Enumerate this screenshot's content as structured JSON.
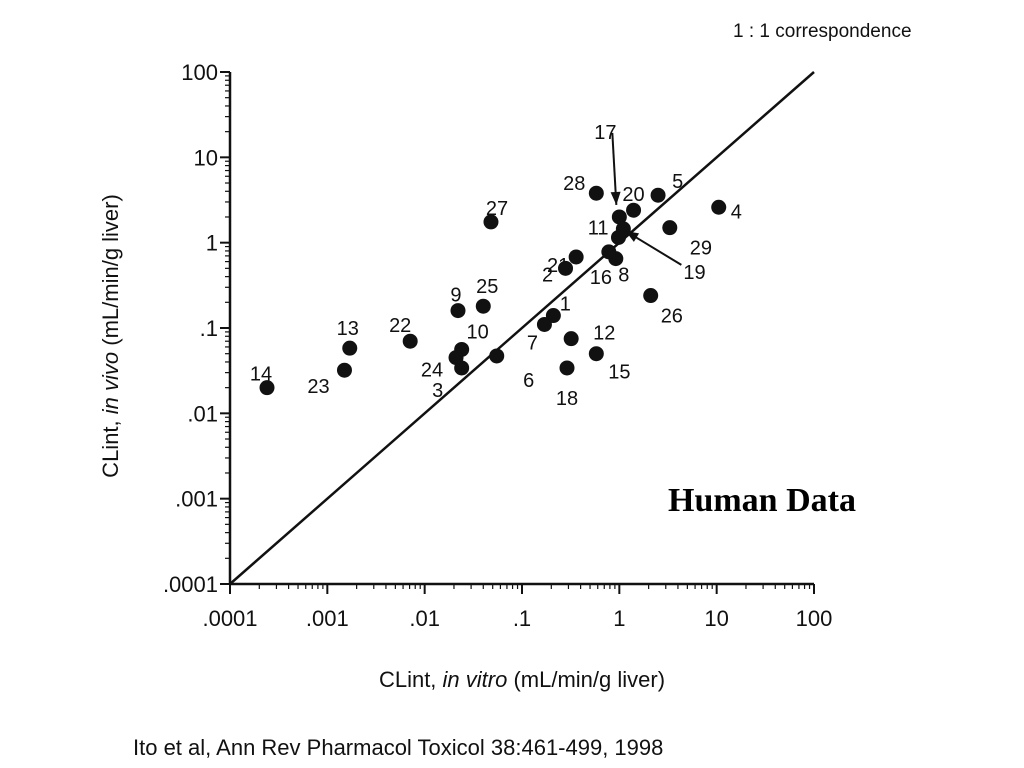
{
  "chart_data": {
    "type": "scatter",
    "title": "",
    "xlabel_prefix": "CLint, ",
    "xlabel_italic": "in vitro",
    "xlabel_suffix": "  (mL/min/g liver)",
    "ylabel_prefix": "CLint, ",
    "ylabel_italic": "in vivo",
    "ylabel_suffix": "  (mL/min/g liver)",
    "x_scale": "log",
    "y_scale": "log",
    "xlim": [
      0.0001,
      100
    ],
    "ylim": [
      0.0001,
      100
    ],
    "x_tick_values": [
      0.0001,
      0.001,
      0.01,
      0.1,
      1,
      10,
      100
    ],
    "x_tick_labels": [
      ".0001",
      ".001",
      ".01",
      ".1",
      "1",
      "10",
      "100"
    ],
    "y_tick_values": [
      0.0001,
      0.001,
      0.01,
      0.1,
      1,
      10,
      100
    ],
    "y_tick_labels": [
      ".0001",
      ".001",
      ".01",
      ".1",
      "1",
      "10",
      "100"
    ],
    "grid": false,
    "reference_line": {
      "label": "1 : 1 correspondence",
      "slope": 1
    },
    "annotation": "Human Data",
    "marker_color": "#111111",
    "points": [
      {
        "id": "1",
        "x": 0.21,
        "y": 0.14
      },
      {
        "id": "2",
        "x": 0.28,
        "y": 0.5
      },
      {
        "id": "3",
        "x": 0.024,
        "y": 0.034
      },
      {
        "id": "4",
        "x": 10.5,
        "y": 2.6
      },
      {
        "id": "5",
        "x": 2.5,
        "y": 3.6
      },
      {
        "id": "6",
        "x": 0.055,
        "y": 0.047
      },
      {
        "id": "7",
        "x": 0.17,
        "y": 0.11
      },
      {
        "id": "8",
        "x": 0.92,
        "y": 0.65
      },
      {
        "id": "9",
        "x": 0.022,
        "y": 0.16
      },
      {
        "id": "10",
        "x": 0.024,
        "y": 0.056
      },
      {
        "id": "11",
        "x": 0.98,
        "y": 1.15
      },
      {
        "id": "12",
        "x": 0.32,
        "y": 0.075
      },
      {
        "id": "13",
        "x": 0.0017,
        "y": 0.058
      },
      {
        "id": "14",
        "x": 0.00024,
        "y": 0.02
      },
      {
        "id": "15",
        "x": 0.58,
        "y": 0.05
      },
      {
        "id": "16",
        "x": 0.78,
        "y": 0.78
      },
      {
        "id": "17",
        "x": 1.0,
        "y": 2.0
      },
      {
        "id": "18",
        "x": 0.29,
        "y": 0.034
      },
      {
        "id": "19",
        "x": 1.1,
        "y": 1.45
      },
      {
        "id": "20",
        "x": 1.4,
        "y": 2.4
      },
      {
        "id": "21",
        "x": 0.36,
        "y": 0.68
      },
      {
        "id": "22",
        "x": 0.0071,
        "y": 0.07
      },
      {
        "id": "23",
        "x": 0.0015,
        "y": 0.032
      },
      {
        "id": "24",
        "x": 0.021,
        "y": 0.045
      },
      {
        "id": "25",
        "x": 0.04,
        "y": 0.18
      },
      {
        "id": "26",
        "x": 2.1,
        "y": 0.24
      },
      {
        "id": "27",
        "x": 0.048,
        "y": 1.75
      },
      {
        "id": "28",
        "x": 0.58,
        "y": 3.8
      },
      {
        "id": "29",
        "x": 3.3,
        "y": 1.5
      }
    ]
  },
  "citation": "Ito et al, Ann Rev Pharmacol Toxicol 38:461-499, 1998"
}
